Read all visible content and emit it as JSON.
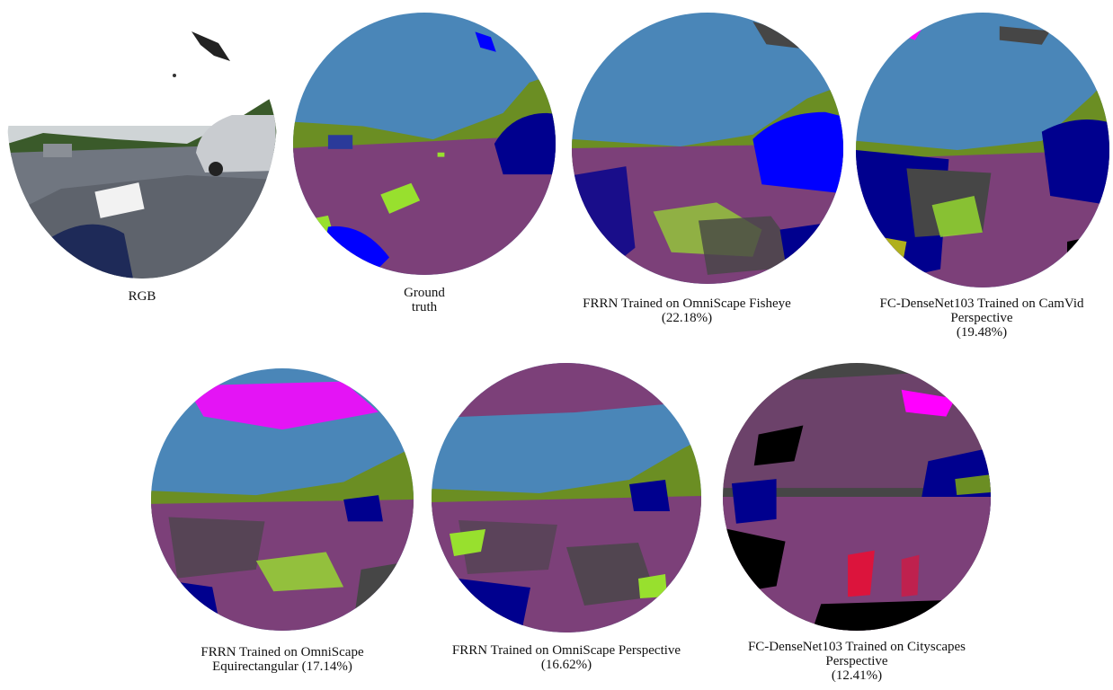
{
  "figure": {
    "panels": [
      {
        "id": "rgb",
        "caption": [
          "RGB"
        ]
      },
      {
        "id": "gt",
        "caption": [
          "Ground",
          "truth"
        ]
      },
      {
        "id": "frrn-fisheye",
        "caption": [
          "FRRN Trained on OmniScape Fisheye",
          "(22.18%)"
        ]
      },
      {
        "id": "fcd-camvid",
        "caption": [
          "FC-DenseNet103 Trained on CamVid",
          "Perspective",
          "(19.48%)"
        ]
      },
      {
        "id": "frrn-equirect",
        "caption": [
          "FRRN Trained on OmniScape",
          "Equirectangular (17.14%)"
        ]
      },
      {
        "id": "frrn-persp",
        "caption": [
          "FRRN Trained on OmniScape Perspective",
          "(16.62%)"
        ]
      },
      {
        "id": "fcd-cityscapes",
        "caption": [
          "FC-DenseNet103 Trained on Cityscapes",
          "Perspective",
          "(12.41%)"
        ]
      }
    ]
  },
  "palette": {
    "sky": "#4a86b8",
    "road": "#7c4079",
    "vegetation": "#6b8e23",
    "car": "#00008e",
    "car_bright": "#0000ff",
    "lane_marking": "#98e02e",
    "building": "#464646",
    "void": "#000000",
    "magenta": "#ff00ff",
    "yellow": "#dcdc00",
    "pink": "#ff8080",
    "red": "#dc143c"
  }
}
